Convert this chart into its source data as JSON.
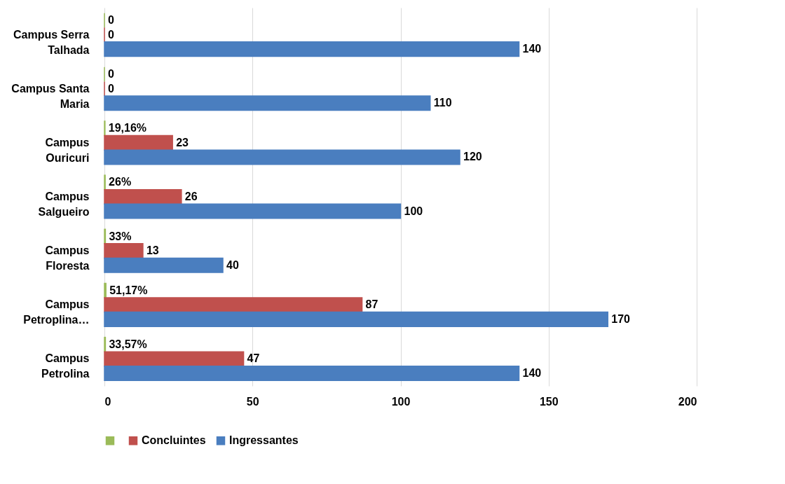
{
  "chart_data": {
    "type": "bar",
    "orientation": "horizontal",
    "categories": [
      "Campus Serra Talhada",
      "Campus Santa Maria",
      "Campus Ouricuri",
      "Campus Salgueiro",
      "Campus Floresta",
      "Campus Petroplina…",
      "Campus Petrolina"
    ],
    "series": [
      {
        "color": "#9bbb59",
        "values": [
          0,
          0,
          0.1916,
          0.26,
          0.33,
          0.5117,
          0.3357
        ],
        "value_labels": [
          "0",
          "0",
          "19,16%",
          "26%",
          "33%",
          "51,17%",
          "33,57%"
        ]
      },
      {
        "name": "Concluintes",
        "color": "#c0504d",
        "values": [
          0,
          0,
          23,
          26,
          13,
          87,
          47
        ]
      },
      {
        "name": "Ingressantes",
        "color": "#4a7ebf",
        "values": [
          140,
          110,
          120,
          100,
          40,
          170,
          140
        ]
      }
    ],
    "xlim": [
      0,
      200
    ],
    "xticks": [
      0,
      50,
      100,
      150,
      200
    ],
    "grid": "x",
    "legend": "bottom",
    "data_labels": true
  }
}
